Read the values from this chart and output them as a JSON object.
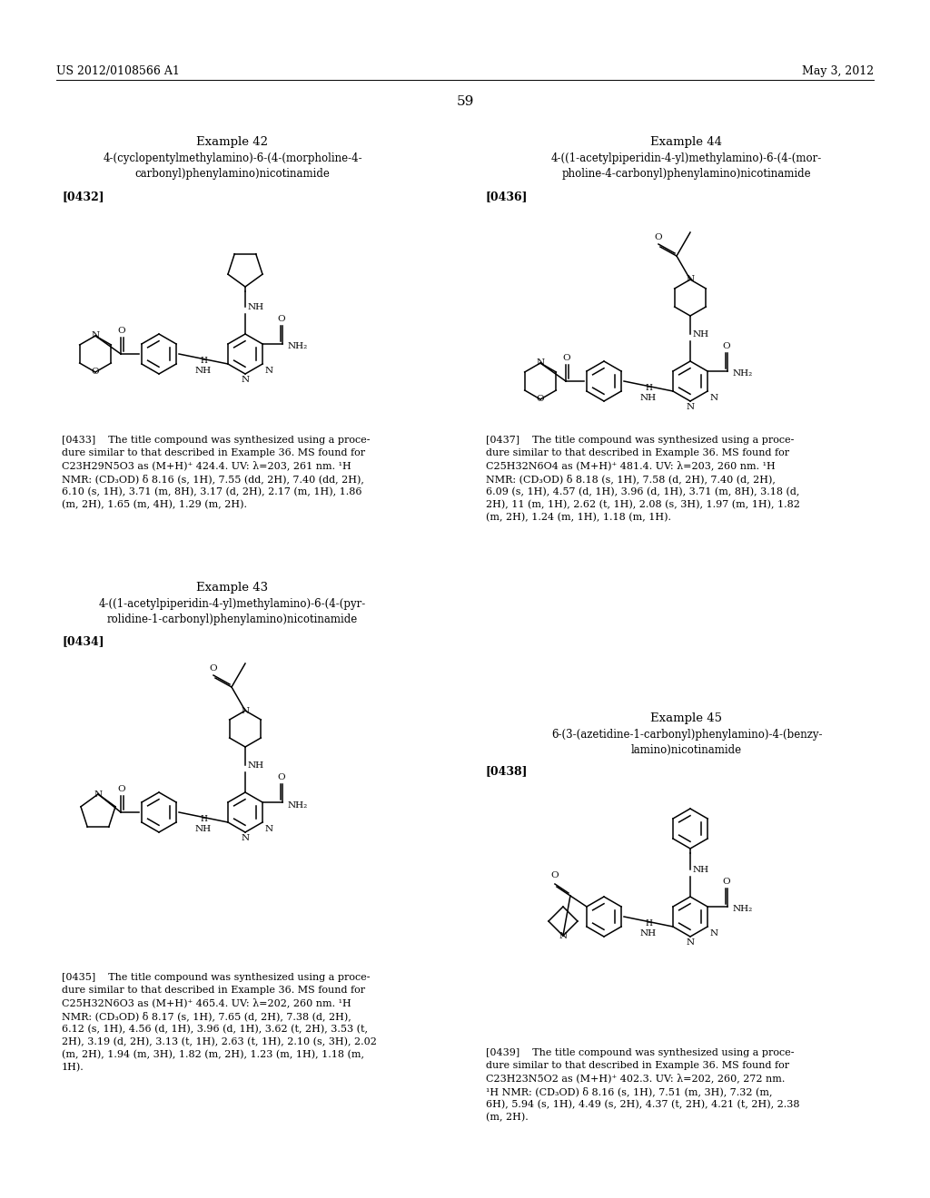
{
  "bg_color": "#ffffff",
  "header_left": "US 2012/0108566 A1",
  "header_right": "May 3, 2012",
  "page_number": "59",
  "lw": 1.1,
  "font_body": 8.0,
  "font_label": 8.0,
  "font_title": 8.5,
  "font_example": 9.5,
  "font_ref": 9.0
}
